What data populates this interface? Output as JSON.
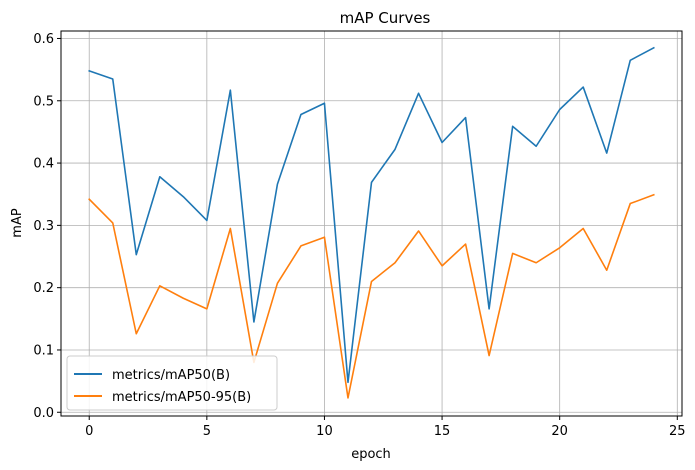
{
  "chart_data": {
    "type": "line",
    "title": "mAP Curves",
    "xlabel": "epoch",
    "ylabel": "mAP",
    "xlim": [
      -1.2,
      25.2
    ],
    "ylim": [
      -0.006,
      0.612
    ],
    "xticks": [
      0,
      5,
      10,
      15,
      20,
      25
    ],
    "yticks": [
      0.0,
      0.1,
      0.2,
      0.3,
      0.4,
      0.5,
      0.6
    ],
    "grid": true,
    "legend_position": "lower-left",
    "x": [
      0,
      1,
      2,
      3,
      4,
      5,
      6,
      7,
      8,
      9,
      10,
      11,
      12,
      13,
      14,
      15,
      16,
      17,
      18,
      19,
      20,
      21,
      22,
      23,
      24
    ],
    "series": [
      {
        "name": "metrics/mAP50(B)",
        "color": "#1f77b4",
        "values": [
          0.548,
          0.535,
          0.253,
          0.378,
          0.346,
          0.308,
          0.517,
          0.145,
          0.366,
          0.478,
          0.496,
          0.048,
          0.369,
          0.422,
          0.512,
          0.433,
          0.473,
          0.166,
          0.459,
          0.427,
          0.486,
          0.522,
          0.416,
          0.565,
          0.585
        ]
      },
      {
        "name": "metrics/mAP50-95(B)",
        "color": "#ff7f0e",
        "values": [
          0.342,
          0.304,
          0.126,
          0.203,
          0.183,
          0.166,
          0.295,
          0.08,
          0.207,
          0.267,
          0.281,
          0.023,
          0.21,
          0.24,
          0.291,
          0.235,
          0.27,
          0.091,
          0.255,
          0.24,
          0.264,
          0.295,
          0.228,
          0.335,
          0.349
        ]
      }
    ]
  }
}
